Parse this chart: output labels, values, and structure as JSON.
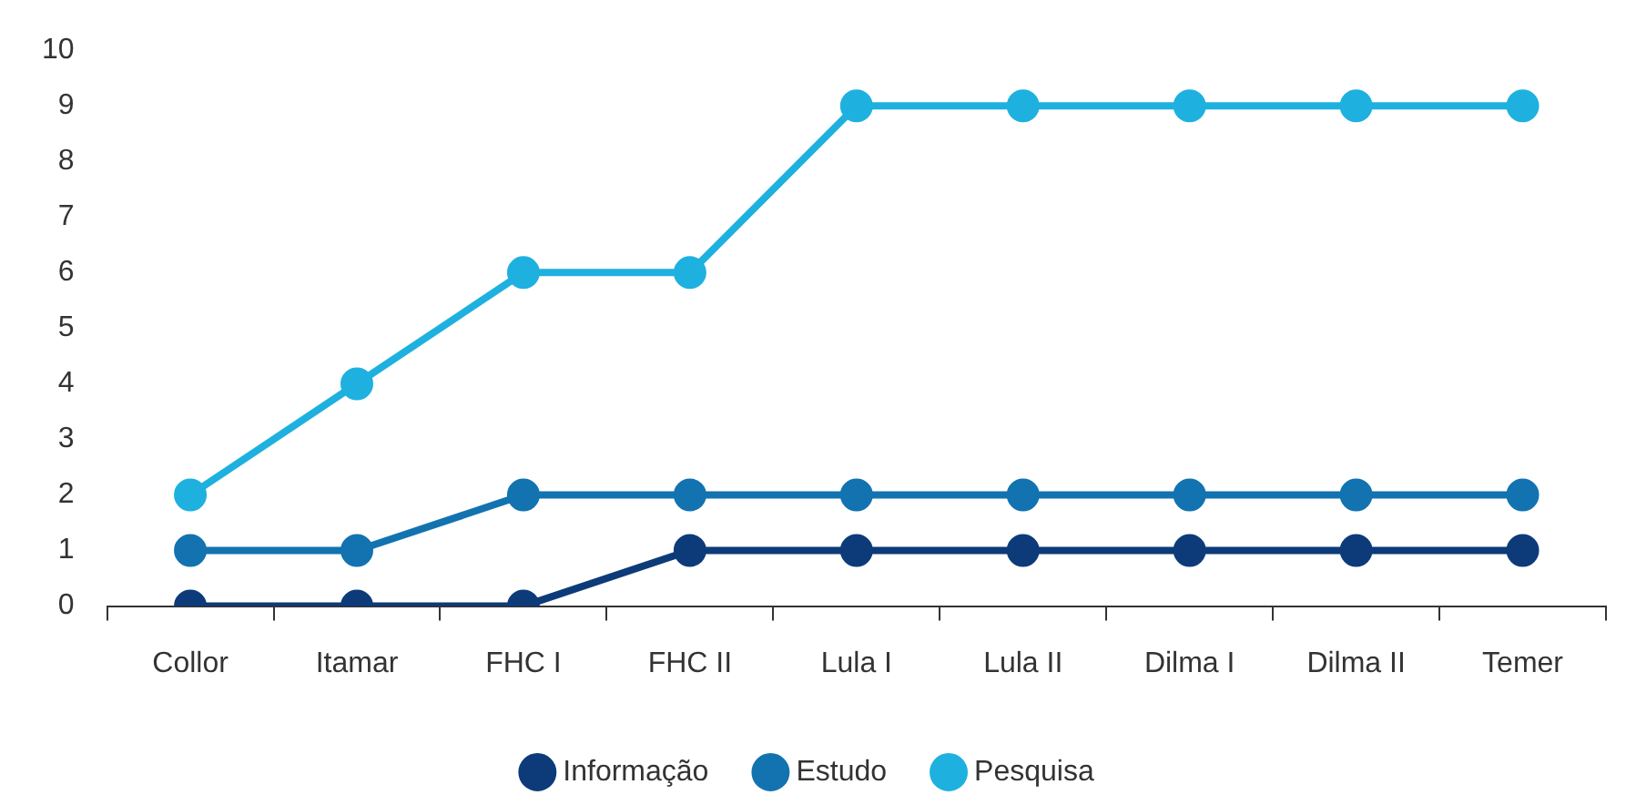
{
  "chart_data": {
    "type": "line",
    "categories": [
      "Collor",
      "Itamar",
      "FHC I",
      "FHC II",
      "Lula I",
      "Lula II",
      "Dilma I",
      "Dilma II",
      "Temer"
    ],
    "series": [
      {
        "name": "Informação",
        "color": "#0d3b7a",
        "values": [
          0,
          0,
          0,
          1,
          1,
          1,
          1,
          1,
          1
        ]
      },
      {
        "name": "Estudo",
        "color": "#1273b0",
        "values": [
          1,
          1,
          2,
          2,
          2,
          2,
          2,
          2,
          2
        ]
      },
      {
        "name": "Pesquisa",
        "color": "#1eb1e0",
        "values": [
          2,
          4,
          6,
          6,
          9,
          9,
          9,
          9,
          9
        ]
      }
    ],
    "ylim": [
      0,
      10
    ],
    "yticks": [
      0,
      1,
      2,
      3,
      4,
      5,
      6,
      7,
      8,
      9,
      10
    ],
    "grid": false,
    "legend": "bottom",
    "marker": "circle",
    "line_style": "solid"
  }
}
